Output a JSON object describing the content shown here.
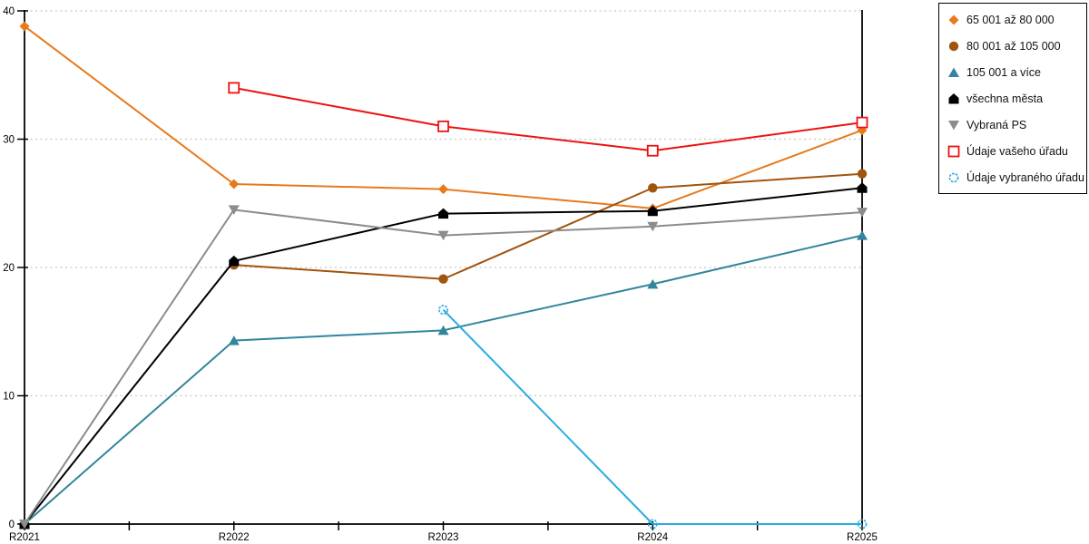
{
  "chart_data": {
    "type": "line",
    "title": "",
    "xlabel": "",
    "ylabel": "",
    "x_categories": [
      "R2021",
      "R2022",
      "R2023",
      "R2024",
      "R2025"
    ],
    "ylim": [
      0,
      40
    ],
    "yticks": [
      0,
      10,
      20,
      30,
      40
    ],
    "grid": "horizontal-dotted",
    "grid_color": "#c4c4c4",
    "axis_color": "#000000",
    "legend_position": "top-right-outside",
    "legend_border_color": "#000000",
    "series": [
      {
        "name": "65 001 až 80 000",
        "color": "#e8791d",
        "marker": "diamond",
        "values": [
          38.8,
          26.5,
          26.1,
          24.6,
          30.7
        ]
      },
      {
        "name": "80 001 až 105 000",
        "color": "#a0540e",
        "marker": "circle",
        "values": [
          null,
          20.2,
          19.1,
          26.2,
          27.3
        ]
      },
      {
        "name": "105 001 a více",
        "color": "#31859c",
        "marker": "triangle-up",
        "values": [
          0,
          14.3,
          15.1,
          18.7,
          22.5
        ]
      },
      {
        "name": "všechna města",
        "color": "#000000",
        "marker": "pentagon",
        "values": [
          0,
          20.5,
          24.2,
          24.4,
          26.2
        ]
      },
      {
        "name": "Vybraná PS",
        "color": "#8c8c8c",
        "marker": "triangle-down",
        "values": [
          0,
          24.5,
          22.5,
          23.2,
          24.3
        ]
      },
      {
        "name": "Údaje vašeho úřadu",
        "color": "#ee1111",
        "marker": "open-square",
        "values": [
          null,
          34.0,
          31.0,
          29.1,
          31.3
        ]
      },
      {
        "name": "Údaje vybraného úřadu",
        "color": "#29abe2",
        "marker": "open-circle",
        "values": [
          null,
          null,
          16.7,
          0,
          0
        ]
      }
    ]
  }
}
